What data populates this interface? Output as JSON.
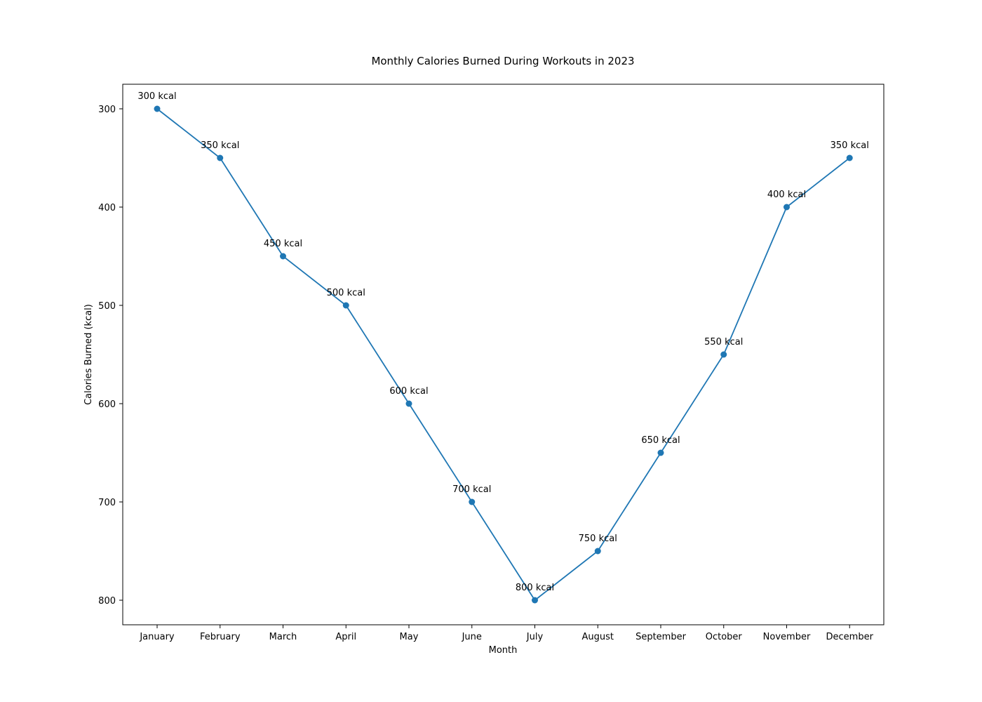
{
  "chart_data": {
    "type": "line",
    "title": "Monthly Calories Burned During Workouts in 2023",
    "xlabel": "Month",
    "ylabel": "Calories Burned (kcal)",
    "y_axis_inverted": true,
    "ylim": [
      275,
      825
    ],
    "yticks": [
      300,
      400,
      500,
      600,
      700,
      800
    ],
    "grid": false,
    "categories": [
      "January",
      "February",
      "March",
      "April",
      "May",
      "June",
      "July",
      "August",
      "September",
      "October",
      "November",
      "December"
    ],
    "series": [
      {
        "values": [
          300,
          350,
          450,
          500,
          600,
          700,
          800,
          750,
          650,
          550,
          400,
          350
        ],
        "color": "#1f77b4",
        "marker": "circle"
      }
    ],
    "data_labels": [
      "300 kcal",
      "350 kcal",
      "450 kcal",
      "500 kcal",
      "600 kcal",
      "700 kcal",
      "800 kcal",
      "750 kcal",
      "650 kcal",
      "550 kcal",
      "400 kcal",
      "350 kcal"
    ]
  }
}
